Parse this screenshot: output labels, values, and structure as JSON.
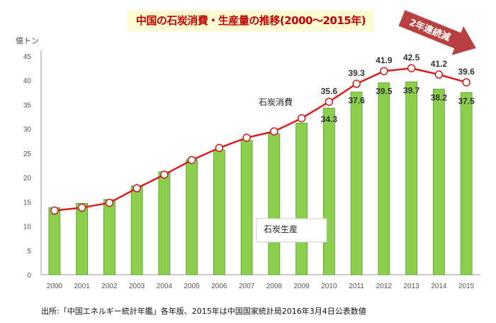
{
  "chart_data": {
    "type": "bar+line",
    "title": "中国の石炭消費・生産量の推移(2000〜2015年)",
    "ylabel": "億トン",
    "ylim": [
      0,
      45
    ],
    "yticks": [
      0,
      5,
      10,
      15,
      20,
      25,
      30,
      35,
      40,
      45
    ],
    "categories": [
      "2000",
      "2001",
      "2002",
      "2003",
      "2004",
      "2005",
      "2006",
      "2007",
      "2008",
      "2009",
      "2010",
      "2011",
      "2012",
      "2013",
      "2014",
      "2015"
    ],
    "series": [
      {
        "name": "石炭生産",
        "kind": "bar",
        "color": "#8ccf4d",
        "values": [
          13.8,
          14.7,
          15.5,
          18.3,
          21.2,
          23.7,
          25.7,
          27.6,
          29.0,
          31.2,
          34.3,
          37.6,
          39.5,
          39.7,
          38.2,
          37.5
        ],
        "labels": [
          null,
          null,
          null,
          null,
          null,
          null,
          null,
          null,
          null,
          null,
          "34.3",
          "37.6",
          "39.5",
          "39.7",
          "38.2",
          "37.5"
        ]
      },
      {
        "name": "石炭消費",
        "kind": "line",
        "color": "#d62020",
        "values": [
          13.2,
          13.8,
          14.8,
          17.8,
          20.6,
          23.6,
          26.1,
          28.2,
          29.5,
          32.2,
          35.6,
          39.3,
          41.9,
          42.5,
          41.2,
          39.6
        ],
        "labels": [
          null,
          null,
          null,
          null,
          null,
          null,
          null,
          null,
          null,
          null,
          "35.6",
          "39.3",
          "41.9",
          "42.5",
          "41.2",
          "39.6"
        ]
      }
    ],
    "annotation": {
      "text": "2年連続減",
      "color": "#b84040"
    },
    "grid": false
  },
  "source": "出所:「中国エネルギー統計年鑑」各年版、2015年は中国国家統計局2016年3月4日公表数値"
}
